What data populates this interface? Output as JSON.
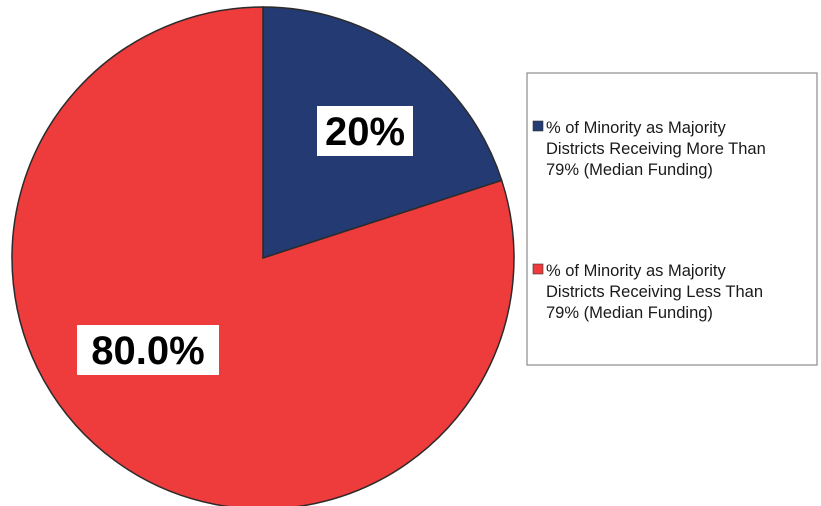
{
  "chart_data": {
    "type": "pie",
    "start_angle_deg": 0,
    "direction": "clockwise",
    "slices": [
      {
        "label": "% of Minority as Majority Districts Receiving More Than 79% (Median Funding)",
        "value": 20,
        "display": "20%",
        "color": "#243a73"
      },
      {
        "label": "% of Minority as Majority Districts Receiving Less Than 79% (Median Funding)",
        "value": 80,
        "display": "80.0%",
        "color": "#ee3b3b"
      }
    ],
    "legend": {
      "position": "right",
      "entries": [
        {
          "lines": [
            "% of Minority as Majority",
            "Districts Receiving More Than",
            "79% (Median Funding)"
          ],
          "color": "#243a73"
        },
        {
          "lines": [
            "% of Minority as Majority",
            "Districts Receiving Less Than",
            "79% (Median Funding)"
          ],
          "color": "#ee3b3b"
        }
      ]
    }
  }
}
